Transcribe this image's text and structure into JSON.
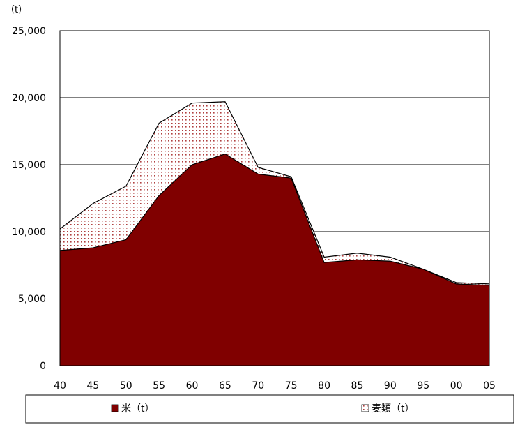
{
  "chart_data": {
    "type": "area",
    "stacked": true,
    "y_unit_label": "（t）",
    "x": [
      "40",
      "45",
      "50",
      "55",
      "60",
      "65",
      "70",
      "75",
      "80",
      "85",
      "90",
      "95",
      "00",
      "05"
    ],
    "series": [
      {
        "name": "米（t）",
        "color": "#800000",
        "pattern": "solid",
        "values": [
          8600,
          8800,
          9400,
          12700,
          15000,
          15800,
          14300,
          14000,
          7700,
          7900,
          7800,
          7200,
          6100,
          6000
        ]
      },
      {
        "name": "麦類（t）",
        "color": "#c0504d",
        "pattern": "dotted",
        "values": [
          1600,
          3300,
          4000,
          5400,
          4600,
          3900,
          500,
          100,
          400,
          500,
          300,
          0,
          100,
          100
        ]
      }
    ],
    "ylim": [
      0,
      25000
    ],
    "yticks": [
      0,
      5000,
      10000,
      15000,
      20000,
      25000
    ],
    "ytick_labels": [
      "0",
      "5,000",
      "10,000",
      "15,000",
      "20,000",
      "25,000"
    ],
    "grid": "horizontal",
    "legend_position": "bottom"
  }
}
